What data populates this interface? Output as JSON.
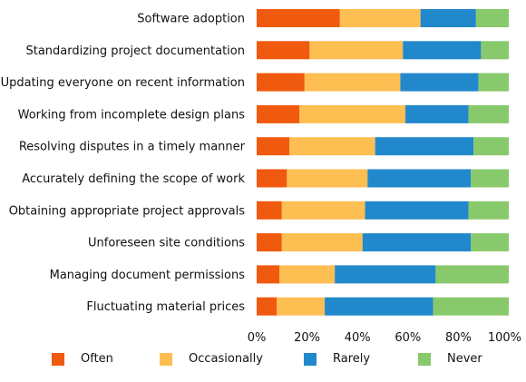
{
  "chart_data": {
    "type": "bar",
    "orientation": "horizontal",
    "stacked": true,
    "categories": [
      "Software adoption",
      "Standardizing project documentation",
      "Updating everyone on recent information",
      "Working from incomplete design plans",
      "Resolving disputes in a timely manner",
      "Accurately defining the scope of work",
      "Obtaining appropriate project approvals",
      "Unforeseen site conditions",
      "Managing document permissions",
      "Fluctuating material prices"
    ],
    "series": [
      {
        "name": "Often",
        "color": "#EF5A0F",
        "values": [
          33,
          21,
          19,
          17,
          13,
          12,
          10,
          10,
          9,
          8
        ]
      },
      {
        "name": "Occasionally",
        "color": "#FDBE52",
        "values": [
          32,
          37,
          38,
          42,
          34,
          32,
          33,
          32,
          22,
          19
        ]
      },
      {
        "name": "Rarely",
        "color": "#2288CC",
        "values": [
          22,
          31,
          31,
          25,
          39,
          41,
          41,
          43,
          40,
          43
        ]
      },
      {
        "name": "Never",
        "color": "#88C96B",
        "values": [
          13,
          11,
          12,
          16,
          14,
          15,
          16,
          15,
          29,
          30
        ]
      }
    ],
    "x_ticks": [
      "0%",
      "20%",
      "40%",
      "60%",
      "80%",
      "100%"
    ],
    "xlim": [
      0,
      100
    ],
    "grid": false,
    "legend_position": "bottom"
  }
}
